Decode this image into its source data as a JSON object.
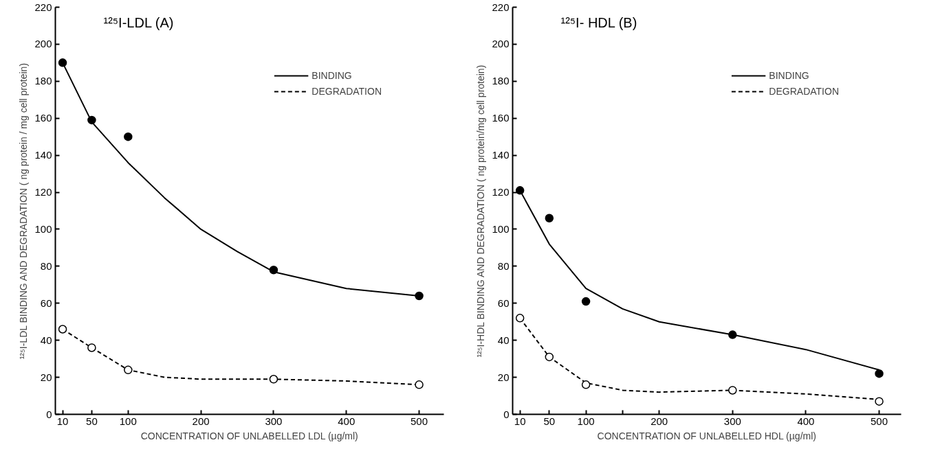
{
  "chart_data": [
    {
      "type": "line",
      "title": "¹²⁵I-LDL  (A)",
      "xlabel": "CONCENTRATION OF UNLABELLED LDL (µg/ml)",
      "ylabel": "¹²⁵I-LDL BINDING AND DEGRADATION ( ng protein / mg cell protein)",
      "xlim": [
        0,
        534
      ],
      "xticks": [
        10,
        50,
        100,
        200,
        300,
        400,
        500
      ],
      "ylim": [
        0,
        220
      ],
      "yticks": [
        0,
        20,
        40,
        60,
        80,
        100,
        120,
        140,
        160,
        180,
        200,
        220
      ],
      "grid": false,
      "legend": "top right",
      "series": [
        {
          "name": "BINDING",
          "color": "#000000",
          "line_style": "solid",
          "x": [
            10,
            50,
            100,
            150,
            200,
            250,
            300,
            400,
            500
          ],
          "values": [
            190,
            158,
            136,
            117,
            100,
            88,
            77,
            68,
            64
          ]
        },
        {
          "name": "DEGRADATION",
          "color": "#000000",
          "line_style": "dashed",
          "x": [
            10,
            50,
            100,
            150,
            200,
            300,
            400,
            500
          ],
          "values": [
            46,
            36,
            24,
            20,
            19,
            19,
            18,
            16
          ]
        },
        {
          "type": "scatter",
          "color": "#000000",
          "marker": "circle",
          "x": [
            10,
            50,
            100,
            300,
            500
          ],
          "values": [
            190,
            159,
            150,
            78,
            64
          ]
        },
        {
          "type": "scatter",
          "color": "#ffffff",
          "marker": "circle",
          "x": [
            10,
            50,
            100,
            300,
            500
          ],
          "values": [
            46,
            36,
            24,
            19,
            16
          ]
        }
      ]
    },
    {
      "type": "line",
      "title": "¹²⁵I- HDL  (B)",
      "xlabel": "CONCENTRATION OF UNLABELLED HDL (µg/ml)",
      "ylabel": "¹²⁵I-HDL BINDING AND DEGRADATION ( ng protein/mg cell protein)",
      "xlim": [
        0,
        530
      ],
      "xticks": [
        10,
        50,
        100,
        {
          "value": 150,
          "label": null
        },
        200,
        300,
        400,
        500
      ],
      "ylim": [
        0,
        220
      ],
      "yticks": [
        0,
        20,
        40,
        60,
        80,
        100,
        120,
        140,
        160,
        180,
        200,
        220
      ],
      "grid": false,
      "legend": "top right",
      "series": [
        {
          "name": "BINDING",
          "color": "#000000",
          "line_style": "solid",
          "x": [
            10,
            50,
            100,
            150,
            200,
            300,
            400,
            500
          ],
          "values": [
            121,
            92,
            68,
            57,
            50,
            43,
            35,
            24
          ]
        },
        {
          "name": "DEGRADATION",
          "color": "#000000",
          "line_style": "dashed",
          "x": [
            10,
            50,
            100,
            150,
            200,
            300,
            400,
            500
          ],
          "values": [
            52,
            31,
            17,
            13,
            12,
            13,
            11,
            8
          ]
        },
        {
          "type": "scatter",
          "color": "#000000",
          "marker": "circle",
          "x": [
            10,
            50,
            100,
            300,
            500
          ],
          "values": [
            121,
            106,
            61,
            43,
            22
          ]
        },
        {
          "type": "scatter",
          "color": "#ffffff",
          "marker": "circle",
          "x": [
            10,
            50,
            100,
            300,
            500
          ],
          "values": [
            52,
            31,
            16,
            13,
            7
          ]
        }
      ]
    }
  ]
}
